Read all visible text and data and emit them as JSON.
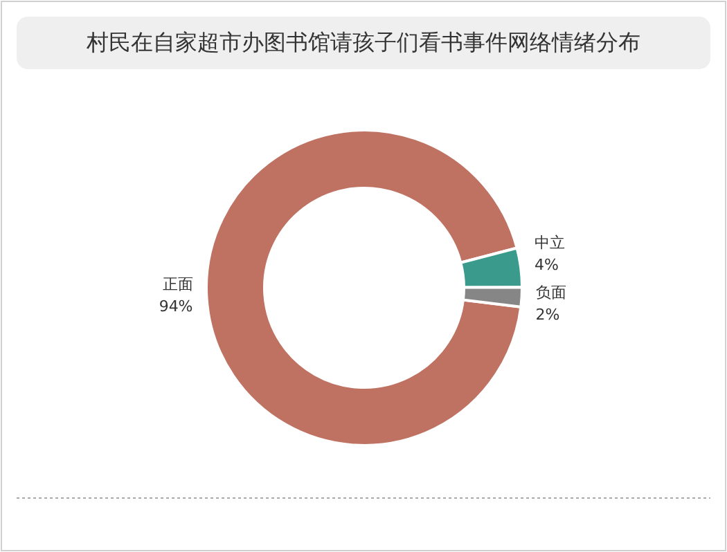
{
  "chart_data": {
    "type": "donut",
    "title": "村民在自家超市办图书馆请孩子们看书事件网络情绪分布",
    "categories": [
      "正面",
      "中立",
      "负面"
    ],
    "values": [
      94,
      4,
      2
    ],
    "value_labels": [
      "94%",
      "4%",
      "2%"
    ],
    "colors": [
      "#c07262",
      "#3a9a8b",
      "#868686"
    ]
  }
}
